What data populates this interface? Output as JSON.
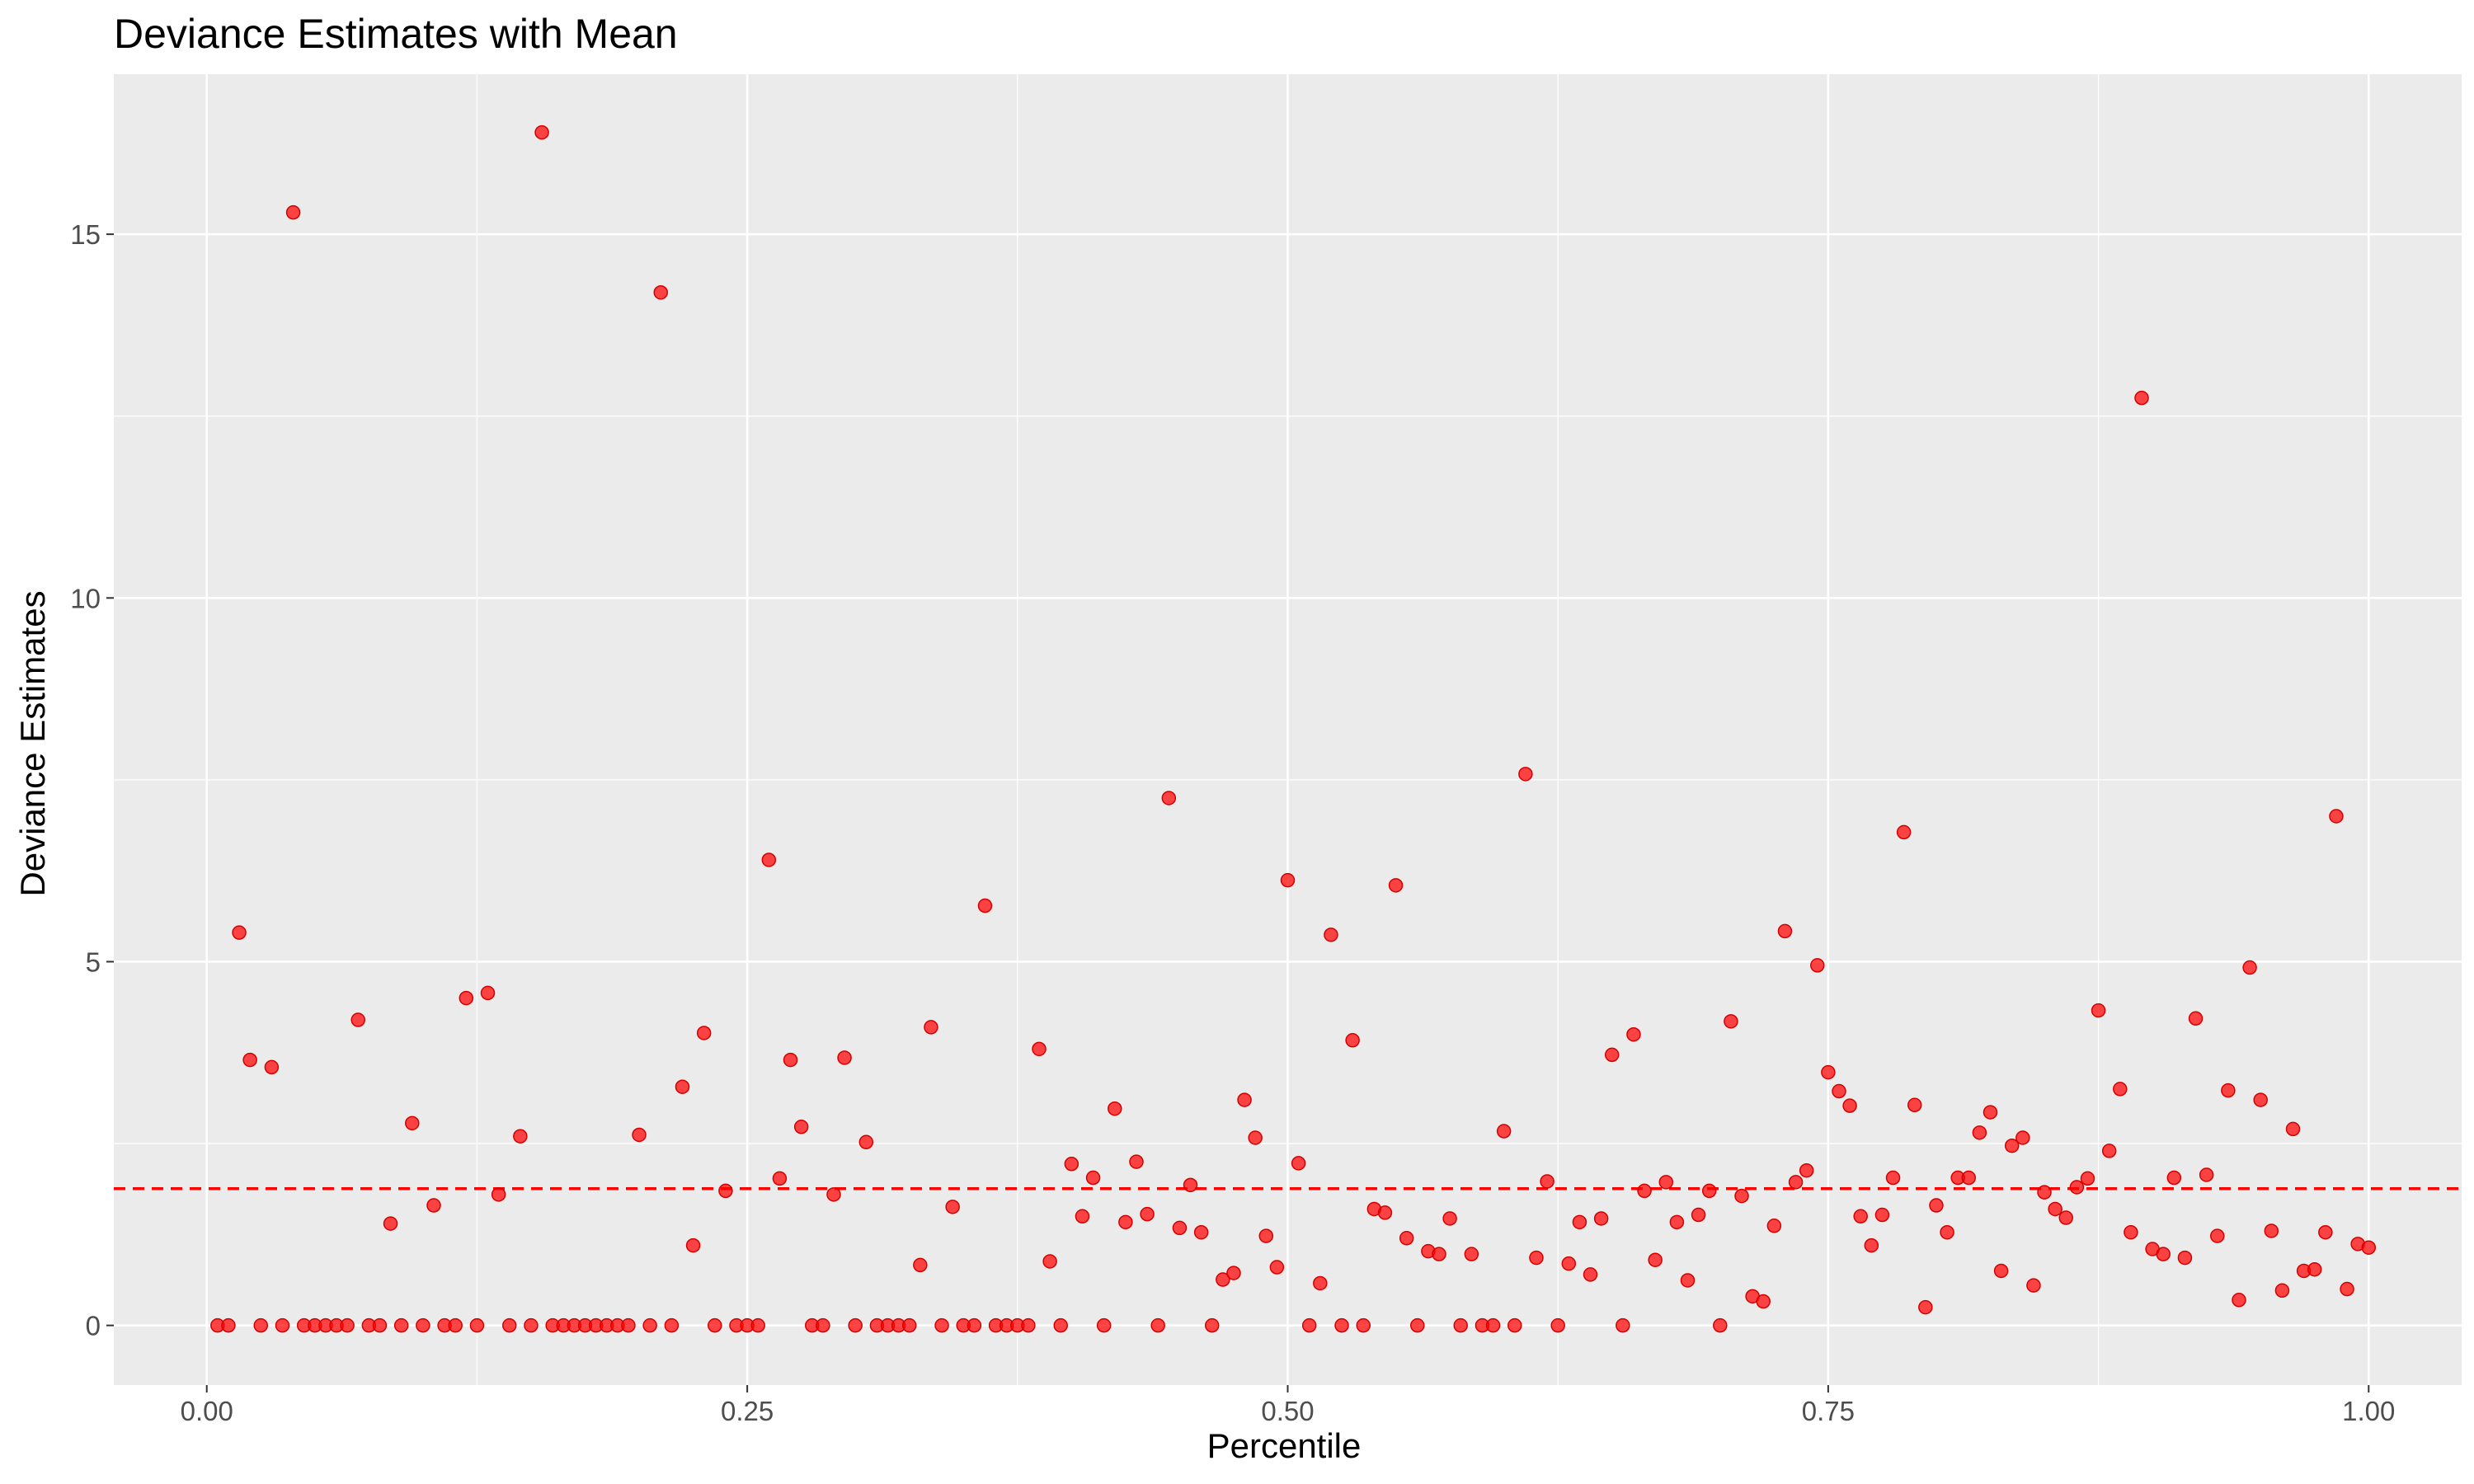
{
  "chart_data": {
    "type": "scatter",
    "title": "Deviance Estimates with Mean",
    "xlabel": "Percentile",
    "ylabel": "Deviance Estimates",
    "xlim": [
      -0.043,
      1.043
    ],
    "ylim": [
      -0.82,
      17.2
    ],
    "x_ticks": [
      0.0,
      0.25,
      0.5,
      0.75,
      1.0
    ],
    "x_tick_labels": [
      "0.00",
      "0.25",
      "0.50",
      "0.75",
      "1.00"
    ],
    "y_ticks": [
      0,
      5,
      10,
      15
    ],
    "y_tick_labels": [
      "0",
      "5",
      "10",
      "15"
    ],
    "grid": true,
    "panel_background": "#ebebeb",
    "point_color": "#ff0000",
    "mean_line": {
      "y": 1.88,
      "color": "#ff0000",
      "style": "dashed"
    },
    "points": [
      [
        0.005,
        0
      ],
      [
        0.01,
        0
      ],
      [
        0.015,
        5.4
      ],
      [
        0.02,
        3.65
      ],
      [
        0.025,
        0
      ],
      [
        0.03,
        3.55
      ],
      [
        0.035,
        0
      ],
      [
        0.04,
        15.3
      ],
      [
        0.045,
        0
      ],
      [
        0.05,
        0
      ],
      [
        0.055,
        0
      ],
      [
        0.06,
        0
      ],
      [
        0.065,
        0
      ],
      [
        0.07,
        4.2
      ],
      [
        0.075,
        0
      ],
      [
        0.08,
        0
      ],
      [
        0.085,
        1.4
      ],
      [
        0.09,
        0
      ],
      [
        0.095,
        2.78
      ],
      [
        0.1,
        0
      ],
      [
        0.105,
        1.65
      ],
      [
        0.11,
        0
      ],
      [
        0.115,
        0
      ],
      [
        0.12,
        4.5
      ],
      [
        0.125,
        0
      ],
      [
        0.13,
        4.57
      ],
      [
        0.135,
        1.8
      ],
      [
        0.14,
        0
      ],
      [
        0.145,
        2.6
      ],
      [
        0.15,
        0
      ],
      [
        0.155,
        16.4
      ],
      [
        0.16,
        0
      ],
      [
        0.165,
        0
      ],
      [
        0.17,
        0
      ],
      [
        0.175,
        0
      ],
      [
        0.18,
        0
      ],
      [
        0.185,
        0
      ],
      [
        0.19,
        0
      ],
      [
        0.195,
        0
      ],
      [
        0.2,
        2.62
      ],
      [
        0.205,
        0
      ],
      [
        0.21,
        14.2
      ],
      [
        0.215,
        0
      ],
      [
        0.22,
        3.28
      ],
      [
        0.225,
        1.1
      ],
      [
        0.23,
        4.02
      ],
      [
        0.235,
        0
      ],
      [
        0.24,
        1.85
      ],
      [
        0.245,
        0
      ],
      [
        0.25,
        0
      ],
      [
        0.255,
        0
      ],
      [
        0.26,
        6.4
      ],
      [
        0.265,
        2.02
      ],
      [
        0.27,
        3.65
      ],
      [
        0.275,
        2.73
      ],
      [
        0.28,
        0
      ],
      [
        0.285,
        0
      ],
      [
        0.29,
        1.8
      ],
      [
        0.295,
        3.68
      ],
      [
        0.3,
        0
      ],
      [
        0.305,
        2.52
      ],
      [
        0.31,
        0
      ],
      [
        0.315,
        0
      ],
      [
        0.32,
        0
      ],
      [
        0.325,
        0
      ],
      [
        0.33,
        0.83
      ],
      [
        0.335,
        4.1
      ],
      [
        0.34,
        0
      ],
      [
        0.345,
        1.63
      ],
      [
        0.35,
        0
      ],
      [
        0.355,
        0
      ],
      [
        0.36,
        5.77
      ],
      [
        0.365,
        0
      ],
      [
        0.37,
        0
      ],
      [
        0.375,
        0
      ],
      [
        0.38,
        0
      ],
      [
        0.385,
        3.8
      ],
      [
        0.39,
        0.88
      ],
      [
        0.395,
        0
      ],
      [
        0.4,
        2.22
      ],
      [
        0.405,
        1.5
      ],
      [
        0.41,
        2.03
      ],
      [
        0.415,
        0
      ],
      [
        0.42,
        2.98
      ],
      [
        0.425,
        1.42
      ],
      [
        0.43,
        2.25
      ],
      [
        0.435,
        1.53
      ],
      [
        0.44,
        0
      ],
      [
        0.445,
        7.25
      ],
      [
        0.45,
        1.34
      ],
      [
        0.455,
        1.93
      ],
      [
        0.46,
        1.28
      ],
      [
        0.465,
        0
      ],
      [
        0.47,
        0.63
      ],
      [
        0.475,
        0.72
      ],
      [
        0.48,
        3.1
      ],
      [
        0.485,
        2.58
      ],
      [
        0.49,
        1.23
      ],
      [
        0.495,
        0.8
      ],
      [
        0.5,
        6.12
      ],
      [
        0.505,
        2.23
      ],
      [
        0.51,
        0
      ],
      [
        0.515,
        0.58
      ],
      [
        0.52,
        5.37
      ],
      [
        0.525,
        0
      ],
      [
        0.53,
        3.92
      ],
      [
        0.535,
        0
      ],
      [
        0.54,
        1.6
      ],
      [
        0.545,
        1.55
      ],
      [
        0.55,
        6.05
      ],
      [
        0.555,
        1.2
      ],
      [
        0.56,
        0
      ],
      [
        0.565,
        1.02
      ],
      [
        0.57,
        0.98
      ],
      [
        0.575,
        1.47
      ],
      [
        0.58,
        0
      ],
      [
        0.585,
        0.98
      ],
      [
        0.59,
        0
      ],
      [
        0.595,
        0
      ],
      [
        0.6,
        2.67
      ],
      [
        0.605,
        0
      ],
      [
        0.61,
        7.58
      ],
      [
        0.615,
        0.93
      ],
      [
        0.62,
        1.98
      ],
      [
        0.625,
        0
      ],
      [
        0.63,
        0.85
      ],
      [
        0.635,
        1.42
      ],
      [
        0.64,
        0.7
      ],
      [
        0.645,
        1.47
      ],
      [
        0.65,
        3.72
      ],
      [
        0.655,
        0
      ],
      [
        0.66,
        4
      ],
      [
        0.665,
        1.85
      ],
      [
        0.67,
        0.9
      ],
      [
        0.675,
        1.97
      ],
      [
        0.68,
        1.42
      ],
      [
        0.685,
        0.62
      ],
      [
        0.69,
        1.52
      ],
      [
        0.695,
        1.85
      ],
      [
        0.7,
        0
      ],
      [
        0.705,
        4.18
      ],
      [
        0.71,
        1.78
      ],
      [
        0.715,
        0.4
      ],
      [
        0.72,
        0.33
      ],
      [
        0.725,
        1.37
      ],
      [
        0.73,
        5.42
      ],
      [
        0.735,
        1.97
      ],
      [
        0.74,
        2.13
      ],
      [
        0.745,
        4.95
      ],
      [
        0.75,
        3.48
      ],
      [
        0.755,
        3.22
      ],
      [
        0.76,
        3.02
      ],
      [
        0.765,
        1.5
      ],
      [
        0.77,
        1.1
      ],
      [
        0.775,
        1.52
      ],
      [
        0.78,
        2.03
      ],
      [
        0.785,
        6.78
      ],
      [
        0.79,
        3.03
      ],
      [
        0.795,
        0.25
      ],
      [
        0.8,
        1.65
      ],
      [
        0.805,
        1.28
      ],
      [
        0.81,
        2.03
      ],
      [
        0.815,
        2.03
      ],
      [
        0.82,
        2.65
      ],
      [
        0.825,
        2.93
      ],
      [
        0.83,
        0.75
      ],
      [
        0.835,
        2.47
      ],
      [
        0.84,
        2.58
      ],
      [
        0.845,
        0.55
      ],
      [
        0.85,
        1.83
      ],
      [
        0.855,
        1.6
      ],
      [
        0.86,
        1.48
      ],
      [
        0.865,
        1.9
      ],
      [
        0.87,
        2.02
      ],
      [
        0.875,
        4.33
      ],
      [
        0.88,
        2.4
      ],
      [
        0.885,
        3.25
      ],
      [
        0.89,
        1.28
      ],
      [
        0.895,
        12.75
      ],
      [
        0.9,
        1.05
      ],
      [
        0.905,
        0.98
      ],
      [
        0.91,
        2.03
      ],
      [
        0.915,
        0.93
      ],
      [
        0.92,
        4.22
      ],
      [
        0.925,
        2.07
      ],
      [
        0.93,
        1.23
      ],
      [
        0.935,
        3.23
      ],
      [
        0.94,
        0.35
      ],
      [
        0.945,
        4.92
      ],
      [
        0.95,
        3.1
      ],
      [
        0.955,
        1.3
      ],
      [
        0.96,
        0.48
      ],
      [
        0.965,
        2.7
      ],
      [
        0.97,
        0.75
      ],
      [
        0.975,
        0.77
      ],
      [
        0.98,
        1.28
      ],
      [
        0.985,
        7
      ],
      [
        0.99,
        0.5
      ],
      [
        0.995,
        1.12
      ],
      [
        1.0,
        1.07
      ]
    ]
  }
}
